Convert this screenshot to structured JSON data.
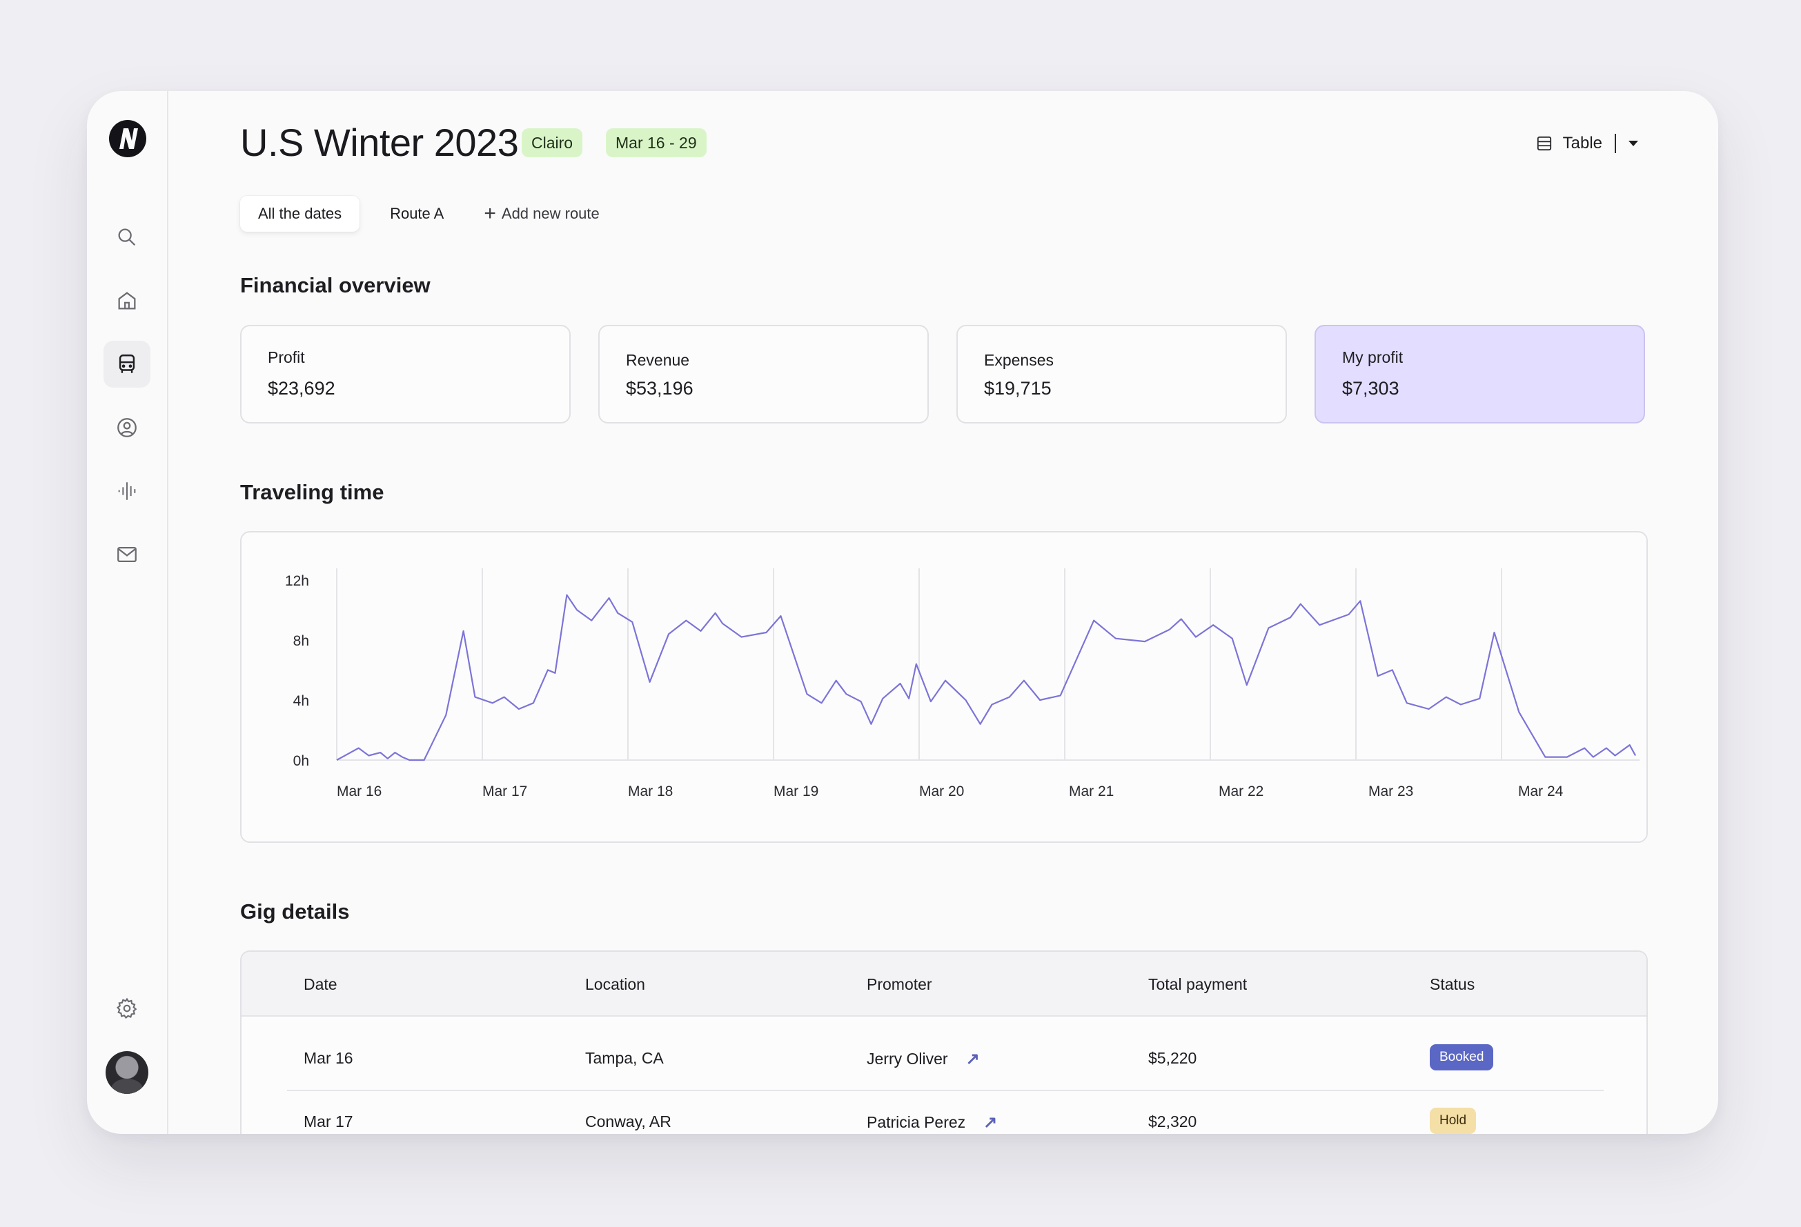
{
  "header": {
    "title": "U.S Winter 2023",
    "artist_chip": "Clairo",
    "date_chip": "Mar 16 - 29",
    "view_label": "Table"
  },
  "tabs": [
    {
      "label": "All the dates",
      "active": true
    },
    {
      "label": "Route A",
      "active": false
    }
  ],
  "add_route_label": "Add new route",
  "financial": {
    "title": "Financial overview",
    "cards": [
      {
        "label": "Profit",
        "value": "$23,692"
      },
      {
        "label": "Revenue",
        "value": "$53,196"
      },
      {
        "label": "Expenses",
        "value": "$19,715"
      },
      {
        "label": "My profit",
        "value": "$7,303"
      }
    ]
  },
  "traveling": {
    "title": "Traveling time"
  },
  "chart_data": {
    "type": "line",
    "title": "Traveling time",
    "xlabel": "",
    "ylabel": "",
    "ylim": [
      0,
      12.5
    ],
    "y_ticks": [
      "0h",
      "4h",
      "8h",
      "12h"
    ],
    "categories": [
      "Mar 16",
      "Mar 17",
      "Mar 18",
      "Mar 19",
      "Mar 20",
      "Mar 21",
      "Mar 22",
      "Mar 23",
      "Mar 24"
    ],
    "grid": "vertical lines at day boundaries",
    "color": "#7c74d8",
    "series": [
      {
        "values": [
          [
            0,
            0
          ],
          [
            0.15,
            0.8
          ],
          [
            0.22,
            0.3
          ],
          [
            0.3,
            0.5
          ],
          [
            0.35,
            0.1
          ],
          [
            0.4,
            0.5
          ],
          [
            0.45,
            0.2
          ],
          [
            0.5,
            0.0
          ],
          [
            0.6,
            0.0
          ],
          [
            0.75,
            3.0
          ],
          [
            0.87,
            8.6
          ],
          [
            0.95,
            4.2
          ],
          [
            1.07,
            3.8
          ],
          [
            1.15,
            4.2
          ],
          [
            1.25,
            3.4
          ],
          [
            1.35,
            3.8
          ],
          [
            1.45,
            6.0
          ],
          [
            1.5,
            5.8
          ],
          [
            1.58,
            11.0
          ],
          [
            1.65,
            10.0
          ],
          [
            1.75,
            9.3
          ],
          [
            1.87,
            10.8
          ],
          [
            1.93,
            9.8
          ],
          [
            2.03,
            9.2
          ],
          [
            2.15,
            5.2
          ],
          [
            2.28,
            8.4
          ],
          [
            2.4,
            9.3
          ],
          [
            2.5,
            8.6
          ],
          [
            2.6,
            9.8
          ],
          [
            2.65,
            9.1
          ],
          [
            2.78,
            8.2
          ],
          [
            2.95,
            8.5
          ],
          [
            3.05,
            9.6
          ],
          [
            3.23,
            4.4
          ],
          [
            3.33,
            3.8
          ],
          [
            3.43,
            5.3
          ],
          [
            3.5,
            4.4
          ],
          [
            3.6,
            3.9
          ],
          [
            3.67,
            2.4
          ],
          [
            3.75,
            4.1
          ],
          [
            3.87,
            5.1
          ],
          [
            3.93,
            4.1
          ],
          [
            3.98,
            6.4
          ],
          [
            4.08,
            3.9
          ],
          [
            4.18,
            5.3
          ],
          [
            4.32,
            4.0
          ],
          [
            4.42,
            2.4
          ],
          [
            4.5,
            3.7
          ],
          [
            4.62,
            4.2
          ],
          [
            4.72,
            5.3
          ],
          [
            4.83,
            4.0
          ],
          [
            4.97,
            4.3
          ],
          [
            5.2,
            9.3
          ],
          [
            5.35,
            8.1
          ],
          [
            5.55,
            7.9
          ],
          [
            5.72,
            8.7
          ],
          [
            5.8,
            9.4
          ],
          [
            5.9,
            8.2
          ],
          [
            6.02,
            9.0
          ],
          [
            6.15,
            8.1
          ],
          [
            6.25,
            5.0
          ],
          [
            6.4,
            8.8
          ],
          [
            6.55,
            9.5
          ],
          [
            6.62,
            10.4
          ],
          [
            6.75,
            9.0
          ],
          [
            6.95,
            9.7
          ],
          [
            7.03,
            10.6
          ],
          [
            7.15,
            5.6
          ],
          [
            7.25,
            6.0
          ],
          [
            7.35,
            3.8
          ],
          [
            7.5,
            3.4
          ],
          [
            7.62,
            4.2
          ],
          [
            7.72,
            3.7
          ],
          [
            7.85,
            4.1
          ],
          [
            7.95,
            8.5
          ],
          [
            8.12,
            3.2
          ],
          [
            8.3,
            0.2
          ],
          [
            8.45,
            0.2
          ],
          [
            8.57,
            0.8
          ],
          [
            8.63,
            0.2
          ],
          [
            8.72,
            0.8
          ],
          [
            8.78,
            0.3
          ],
          [
            8.88,
            1.0
          ],
          [
            8.92,
            0.3
          ]
        ]
      }
    ]
  },
  "gigs": {
    "title": "Gig details",
    "columns": [
      "Date",
      "Location",
      "Promoter",
      "Total payment",
      "Status"
    ],
    "rows": [
      {
        "date": "Mar 16",
        "location": "Tampa, CA",
        "promoter": "Jerry Oliver",
        "payment": "$5,220",
        "status": "Booked"
      },
      {
        "date": "Mar 17",
        "location": "Conway, AR",
        "promoter": "Patricia Perez",
        "payment": "$2,320",
        "status": "Hold"
      }
    ]
  },
  "colors": {
    "chip_green": "#d9f5c8",
    "my_profit_bg": "#e3ddff",
    "line": "#7c74d8",
    "booked": "#5b67c4",
    "hold": "#f4dfa6"
  },
  "icons": [
    "logo-icon",
    "search-icon",
    "home-icon",
    "bus-icon",
    "user-icon",
    "audio-wave-icon",
    "mail-icon",
    "gear-icon",
    "table-icon",
    "caret-down-icon",
    "plus-icon",
    "external-link-icon"
  ]
}
